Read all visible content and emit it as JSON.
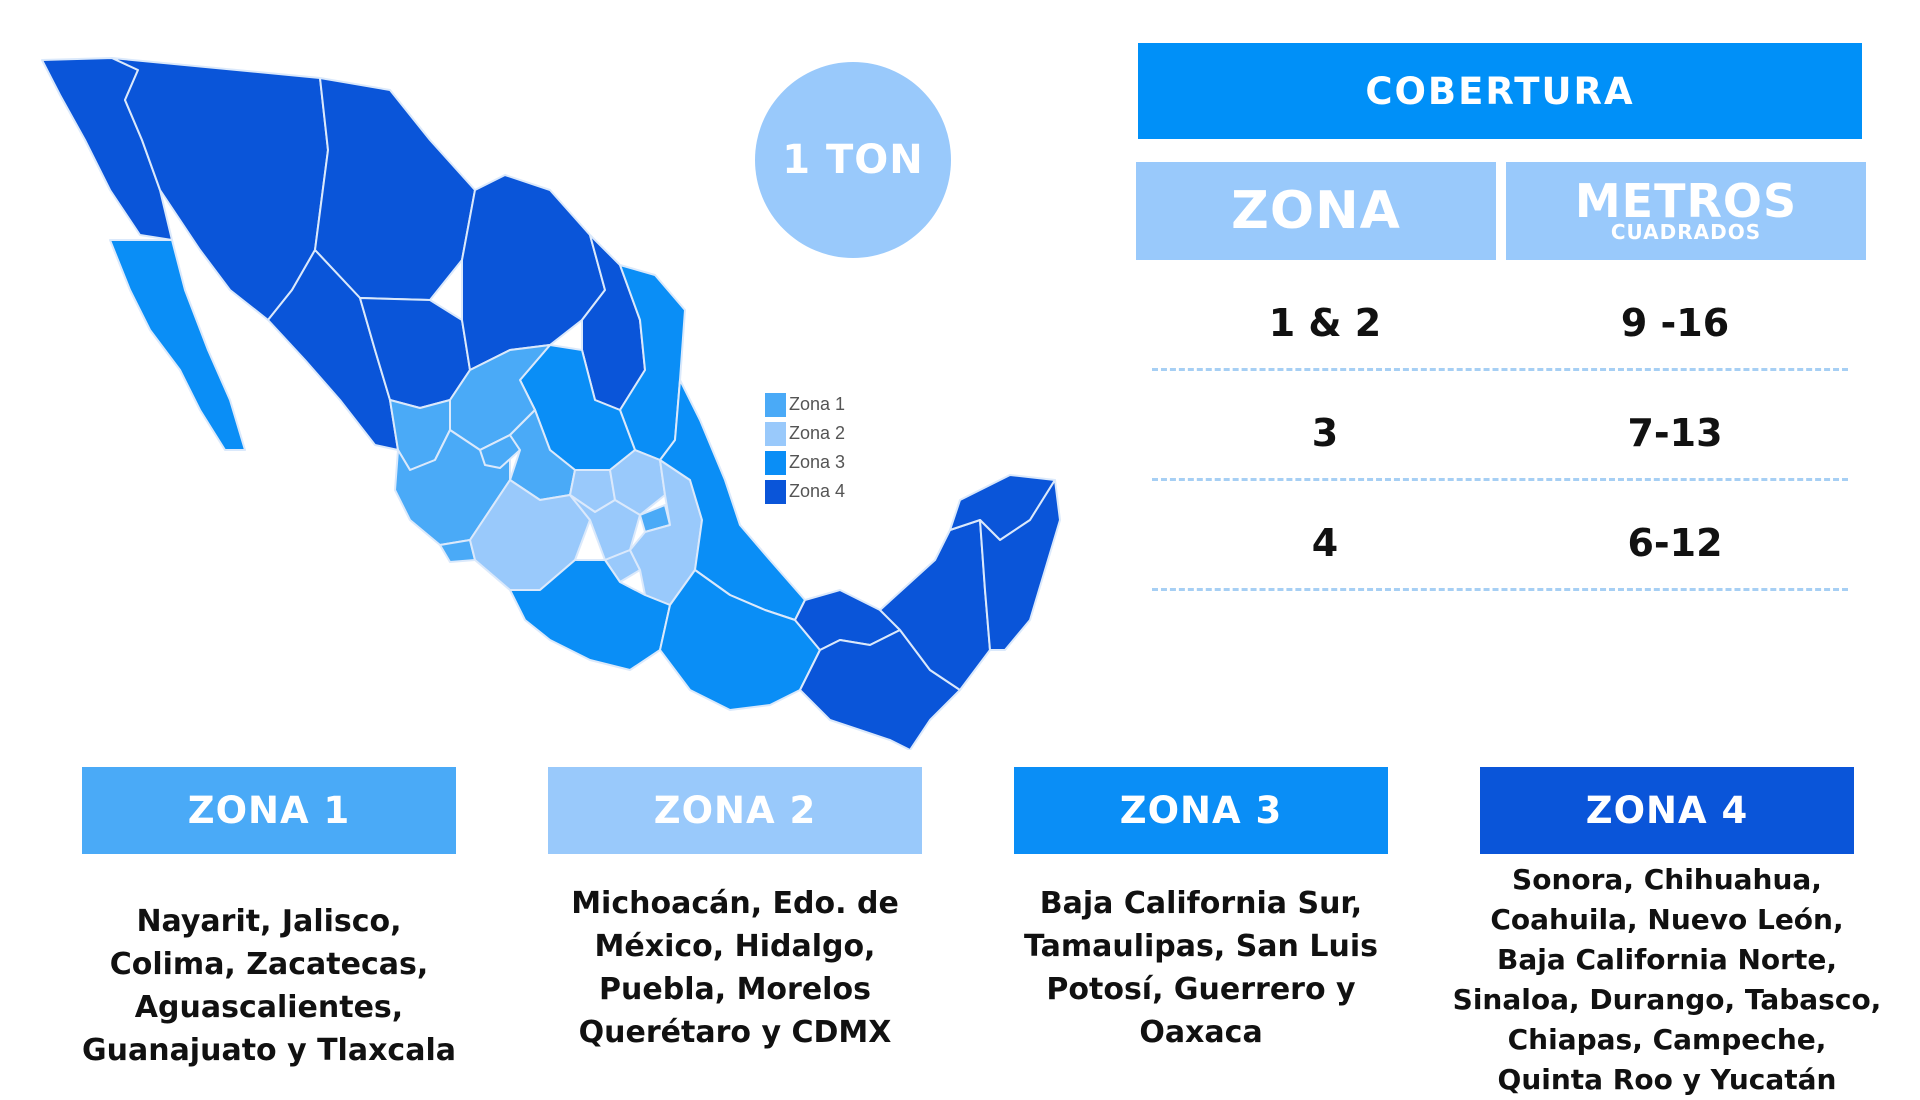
{
  "badge": {
    "label": "1 TON"
  },
  "legend": [
    {
      "label": "Zona 1",
      "color": "#4aaaf7"
    },
    {
      "label": "Zona 2",
      "color": "#99c9fb"
    },
    {
      "label": "Zona 3",
      "color": "#0a8ef6"
    },
    {
      "label": "Zona 4",
      "color": "#0a55d9"
    }
  ],
  "coverage": {
    "title": "COBERTURA",
    "header_zona": "ZONA",
    "header_metros": "METROS",
    "header_metros_sub": "CUADRADOS",
    "rows": [
      {
        "zona": "1 & 2",
        "metros": "9 -16"
      },
      {
        "zona": "3",
        "metros": "7-13"
      },
      {
        "zona": "4",
        "metros": "6-12"
      }
    ]
  },
  "zones": [
    {
      "title": "ZONA 1",
      "color": "#4aaaf7",
      "lines": [
        "Nayarit, Jalisco,",
        "Colima, Zacatecas,",
        "Aguascalientes,",
        "Guanajuato y Tlaxcala"
      ]
    },
    {
      "title": "ZONA 2",
      "color": "#99c9fb",
      "lines": [
        "Michoacán, Edo. de",
        "México, Hidalgo,",
        "Puebla, Morelos",
        "Querétaro y CDMX"
      ]
    },
    {
      "title": "ZONA 3",
      "color": "#0a8ef6",
      "lines": [
        "Baja California Sur,",
        "Tamaulipas, San Luis",
        "Potosí, Guerrero y",
        "Oaxaca"
      ]
    },
    {
      "title": "ZONA 4",
      "color": "#0a55d9",
      "lines": [
        "Sonora, Chihuahua,",
        "Coahuila, Nuevo León,",
        "Baja California Norte,",
        "Sinaloa, Durango, Tabasco,",
        "Chiapas, Campeche,",
        "Quinta Roo y Yucatán"
      ]
    }
  ]
}
